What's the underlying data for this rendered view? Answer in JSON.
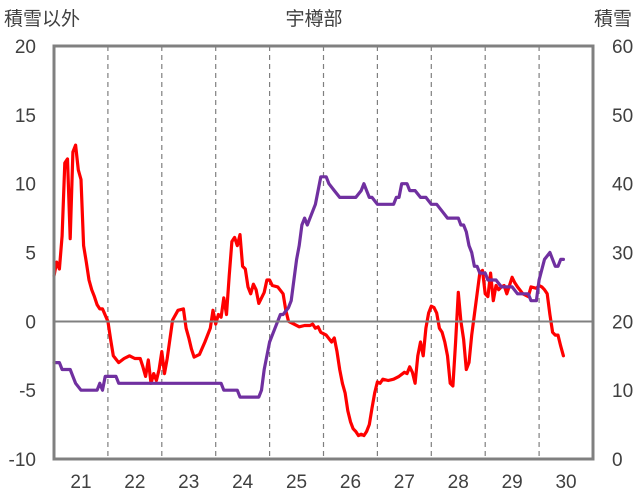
{
  "chart_data": {
    "type": "line",
    "title": "宇樽部",
    "y_left_label": "積雪以外",
    "y_right_label": "積雪",
    "x_ticks": [
      "21",
      "22",
      "23",
      "24",
      "25",
      "26",
      "27",
      "28",
      "29",
      "30"
    ],
    "x_range": [
      20.5,
      30.5
    ],
    "y_left_range": [
      -10,
      20
    ],
    "y_left_ticks": [
      "-10",
      "-5",
      "0",
      "5",
      "10",
      "15",
      "20"
    ],
    "y_right_range": [
      0,
      60
    ],
    "y_right_ticks": [
      "0",
      "10",
      "20",
      "30",
      "40",
      "50",
      "60"
    ],
    "grid": "vertical dashed at day boundaries",
    "series": [
      {
        "axis": "left",
        "color": "#ff0000",
        "points": [
          [
            20.5,
            3.3
          ],
          [
            20.55,
            4.3
          ],
          [
            20.6,
            3.8
          ],
          [
            20.65,
            6.2
          ],
          [
            20.7,
            11.5
          ],
          [
            20.75,
            11.8
          ],
          [
            20.8,
            6.0
          ],
          [
            20.85,
            12.3
          ],
          [
            20.9,
            12.8
          ],
          [
            20.95,
            11.0
          ],
          [
            21.0,
            10.3
          ],
          [
            21.05,
            5.5
          ],
          [
            21.1,
            4.3
          ],
          [
            21.15,
            3.0
          ],
          [
            21.2,
            2.3
          ],
          [
            21.25,
            1.8
          ],
          [
            21.3,
            1.2
          ],
          [
            21.35,
            0.9
          ],
          [
            21.4,
            0.9
          ],
          [
            21.5,
            0.0
          ],
          [
            21.55,
            -1.3
          ],
          [
            21.6,
            -2.5
          ],
          [
            21.7,
            -3.0
          ],
          [
            21.8,
            -2.7
          ],
          [
            21.9,
            -2.5
          ],
          [
            22.0,
            -2.7
          ],
          [
            22.1,
            -2.7
          ],
          [
            22.15,
            -3.3
          ],
          [
            22.2,
            -4.0
          ],
          [
            22.25,
            -2.8
          ],
          [
            22.3,
            -4.5
          ],
          [
            22.35,
            -3.8
          ],
          [
            22.4,
            -4.3
          ],
          [
            22.45,
            -3.5
          ],
          [
            22.5,
            -2.2
          ],
          [
            22.55,
            -3.8
          ],
          [
            22.6,
            -2.7
          ],
          [
            22.7,
            0.1
          ],
          [
            22.8,
            0.8
          ],
          [
            22.9,
            0.9
          ],
          [
            22.95,
            -0.5
          ],
          [
            23.0,
            -1.2
          ],
          [
            23.05,
            -2.0
          ],
          [
            23.1,
            -2.6
          ],
          [
            23.2,
            -2.4
          ],
          [
            23.3,
            -1.5
          ],
          [
            23.4,
            -0.5
          ],
          [
            23.45,
            0.8
          ],
          [
            23.5,
            -0.2
          ],
          [
            23.55,
            0.5
          ],
          [
            23.6,
            0.3
          ],
          [
            23.65,
            1.7
          ],
          [
            23.7,
            0.5
          ],
          [
            23.75,
            3.3
          ],
          [
            23.8,
            5.8
          ],
          [
            23.85,
            6.1
          ],
          [
            23.9,
            5.5
          ],
          [
            23.95,
            6.3
          ],
          [
            24.0,
            4.0
          ],
          [
            24.05,
            3.8
          ],
          [
            24.1,
            2.5
          ],
          [
            24.15,
            2.0
          ],
          [
            24.2,
            2.7
          ],
          [
            24.25,
            2.3
          ],
          [
            24.3,
            1.3
          ],
          [
            24.35,
            1.7
          ],
          [
            24.4,
            2.1
          ],
          [
            24.45,
            3.0
          ],
          [
            24.5,
            3.0
          ],
          [
            24.55,
            2.6
          ],
          [
            24.65,
            2.5
          ],
          [
            24.75,
            2.0
          ],
          [
            24.8,
            0.8
          ],
          [
            24.85,
            0.0
          ],
          [
            24.95,
            -0.2
          ],
          [
            25.05,
            -0.4
          ],
          [
            25.15,
            -0.3
          ],
          [
            25.25,
            -0.3
          ],
          [
            25.3,
            -0.2
          ],
          [
            25.35,
            -0.5
          ],
          [
            25.4,
            -0.4
          ],
          [
            25.45,
            -0.8
          ],
          [
            25.55,
            -1.0
          ],
          [
            25.65,
            -1.5
          ],
          [
            25.7,
            -1.2
          ],
          [
            25.75,
            -2.2
          ],
          [
            25.8,
            -3.5
          ],
          [
            25.85,
            -4.5
          ],
          [
            25.9,
            -5.2
          ],
          [
            25.95,
            -6.5
          ],
          [
            26.0,
            -7.3
          ],
          [
            26.05,
            -7.8
          ],
          [
            26.1,
            -8.0
          ],
          [
            26.15,
            -8.3
          ],
          [
            26.2,
            -8.2
          ],
          [
            26.25,
            -8.3
          ],
          [
            26.3,
            -8.0
          ],
          [
            26.35,
            -7.5
          ],
          [
            26.4,
            -6.3
          ],
          [
            26.45,
            -5.2
          ],
          [
            26.5,
            -4.4
          ],
          [
            26.55,
            -4.5
          ],
          [
            26.6,
            -4.2
          ],
          [
            26.7,
            -4.3
          ],
          [
            26.8,
            -4.2
          ],
          [
            26.9,
            -4.0
          ],
          [
            27.0,
            -3.7
          ],
          [
            27.05,
            -3.8
          ],
          [
            27.1,
            -3.3
          ],
          [
            27.15,
            -3.7
          ],
          [
            27.2,
            -4.5
          ],
          [
            27.25,
            -2.5
          ],
          [
            27.3,
            -1.5
          ],
          [
            27.35,
            -2.5
          ],
          [
            27.4,
            -0.5
          ],
          [
            27.45,
            0.6
          ],
          [
            27.5,
            1.1
          ],
          [
            27.55,
            1.0
          ],
          [
            27.6,
            0.6
          ],
          [
            27.65,
            -0.5
          ],
          [
            27.7,
            -0.8
          ],
          [
            27.75,
            -1.5
          ],
          [
            27.8,
            -2.5
          ],
          [
            27.85,
            -4.5
          ],
          [
            27.9,
            -4.7
          ],
          [
            27.95,
            -1.5
          ],
          [
            28.0,
            2.1
          ],
          [
            28.05,
            0.0
          ],
          [
            28.1,
            -1.3
          ],
          [
            28.15,
            -3.5
          ],
          [
            28.2,
            -3.0
          ],
          [
            28.25,
            -1.0
          ],
          [
            28.3,
            0.5
          ],
          [
            28.35,
            2.0
          ],
          [
            28.4,
            3.5
          ],
          [
            28.45,
            3.7
          ],
          [
            28.5,
            2.0
          ],
          [
            28.55,
            1.8
          ],
          [
            28.6,
            3.5
          ],
          [
            28.65,
            1.5
          ],
          [
            28.7,
            2.6
          ],
          [
            28.75,
            2.3
          ],
          [
            28.8,
            2.5
          ],
          [
            28.85,
            2.6
          ],
          [
            28.9,
            2.0
          ],
          [
            28.95,
            2.6
          ],
          [
            29.0,
            3.2
          ],
          [
            29.05,
            2.8
          ],
          [
            29.1,
            2.5
          ],
          [
            29.2,
            2.0
          ],
          [
            29.3,
            1.8
          ],
          [
            29.35,
            2.5
          ],
          [
            29.45,
            2.4
          ],
          [
            29.5,
            2.6
          ],
          [
            29.55,
            2.5
          ],
          [
            29.6,
            2.3
          ],
          [
            29.65,
            2.0
          ],
          [
            29.7,
            0.5
          ],
          [
            29.75,
            -0.8
          ],
          [
            29.8,
            -1.0
          ],
          [
            29.85,
            -1.0
          ],
          [
            29.9,
            -1.8
          ],
          [
            29.95,
            -2.5
          ]
        ]
      },
      {
        "axis": "right",
        "color": "#7030a0",
        "points": [
          [
            20.5,
            14
          ],
          [
            20.6,
            14
          ],
          [
            20.65,
            13
          ],
          [
            20.8,
            13
          ],
          [
            20.85,
            12
          ],
          [
            20.9,
            11
          ],
          [
            21.0,
            10
          ],
          [
            21.1,
            10
          ],
          [
            21.2,
            10
          ],
          [
            21.3,
            10
          ],
          [
            21.35,
            11
          ],
          [
            21.4,
            10
          ],
          [
            21.45,
            12
          ],
          [
            21.55,
            12
          ],
          [
            21.65,
            12
          ],
          [
            21.7,
            11
          ],
          [
            21.8,
            11
          ],
          [
            21.9,
            11
          ],
          [
            22.0,
            11
          ],
          [
            22.1,
            11
          ],
          [
            22.2,
            11
          ],
          [
            22.3,
            11
          ],
          [
            22.4,
            11
          ],
          [
            22.5,
            11
          ],
          [
            22.6,
            11
          ],
          [
            22.7,
            11
          ],
          [
            22.8,
            11
          ],
          [
            22.9,
            11
          ],
          [
            23.0,
            11
          ],
          [
            23.1,
            11
          ],
          [
            23.2,
            11
          ],
          [
            23.3,
            11
          ],
          [
            23.4,
            11
          ],
          [
            23.5,
            11
          ],
          [
            23.6,
            11
          ],
          [
            23.65,
            10
          ],
          [
            23.7,
            10
          ],
          [
            23.8,
            10
          ],
          [
            23.9,
            10
          ],
          [
            23.95,
            9
          ],
          [
            24.0,
            9
          ],
          [
            24.1,
            9
          ],
          [
            24.2,
            9
          ],
          [
            24.3,
            9
          ],
          [
            24.35,
            10
          ],
          [
            24.4,
            13
          ],
          [
            24.5,
            17
          ],
          [
            24.55,
            18
          ],
          [
            24.6,
            19
          ],
          [
            24.65,
            20
          ],
          [
            24.7,
            21
          ],
          [
            24.75,
            21
          ],
          [
            24.85,
            22
          ],
          [
            24.9,
            23
          ],
          [
            24.95,
            26
          ],
          [
            25.0,
            29
          ],
          [
            25.05,
            31
          ],
          [
            25.1,
            34
          ],
          [
            25.15,
            35
          ],
          [
            25.2,
            34
          ],
          [
            25.25,
            35
          ],
          [
            25.3,
            36
          ],
          [
            25.35,
            37
          ],
          [
            25.4,
            39
          ],
          [
            25.45,
            41
          ],
          [
            25.5,
            41
          ],
          [
            25.55,
            41
          ],
          [
            25.6,
            40
          ],
          [
            25.7,
            39
          ],
          [
            25.8,
            38
          ],
          [
            25.9,
            38
          ],
          [
            26.0,
            38
          ],
          [
            26.1,
            38
          ],
          [
            26.2,
            39
          ],
          [
            26.25,
            40
          ],
          [
            26.3,
            39
          ],
          [
            26.35,
            38
          ],
          [
            26.4,
            38
          ],
          [
            26.5,
            37
          ],
          [
            26.6,
            37
          ],
          [
            26.7,
            37
          ],
          [
            26.8,
            37
          ],
          [
            26.85,
            38
          ],
          [
            26.9,
            38
          ],
          [
            26.95,
            40
          ],
          [
            27.0,
            40
          ],
          [
            27.05,
            40
          ],
          [
            27.1,
            39
          ],
          [
            27.2,
            39
          ],
          [
            27.3,
            38
          ],
          [
            27.4,
            38
          ],
          [
            27.5,
            37
          ],
          [
            27.6,
            37
          ],
          [
            27.7,
            36
          ],
          [
            27.8,
            35
          ],
          [
            27.9,
            35
          ],
          [
            28.0,
            35
          ],
          [
            28.05,
            34
          ],
          [
            28.1,
            34
          ],
          [
            28.15,
            33
          ],
          [
            28.2,
            31
          ],
          [
            28.25,
            30
          ],
          [
            28.3,
            28
          ],
          [
            28.35,
            28
          ],
          [
            28.4,
            27
          ],
          [
            28.5,
            27
          ],
          [
            28.55,
            26
          ],
          [
            28.6,
            26
          ],
          [
            28.7,
            26
          ],
          [
            28.8,
            25
          ],
          [
            28.9,
            25
          ],
          [
            29.0,
            25
          ],
          [
            29.1,
            24
          ],
          [
            29.2,
            24
          ],
          [
            29.3,
            24
          ],
          [
            29.35,
            23
          ],
          [
            29.45,
            23
          ],
          [
            29.5,
            26
          ],
          [
            29.6,
            29
          ],
          [
            29.7,
            30
          ],
          [
            29.75,
            29
          ],
          [
            29.8,
            28
          ],
          [
            29.85,
            28
          ],
          [
            29.9,
            29
          ],
          [
            29.95,
            29
          ]
        ]
      }
    ]
  }
}
